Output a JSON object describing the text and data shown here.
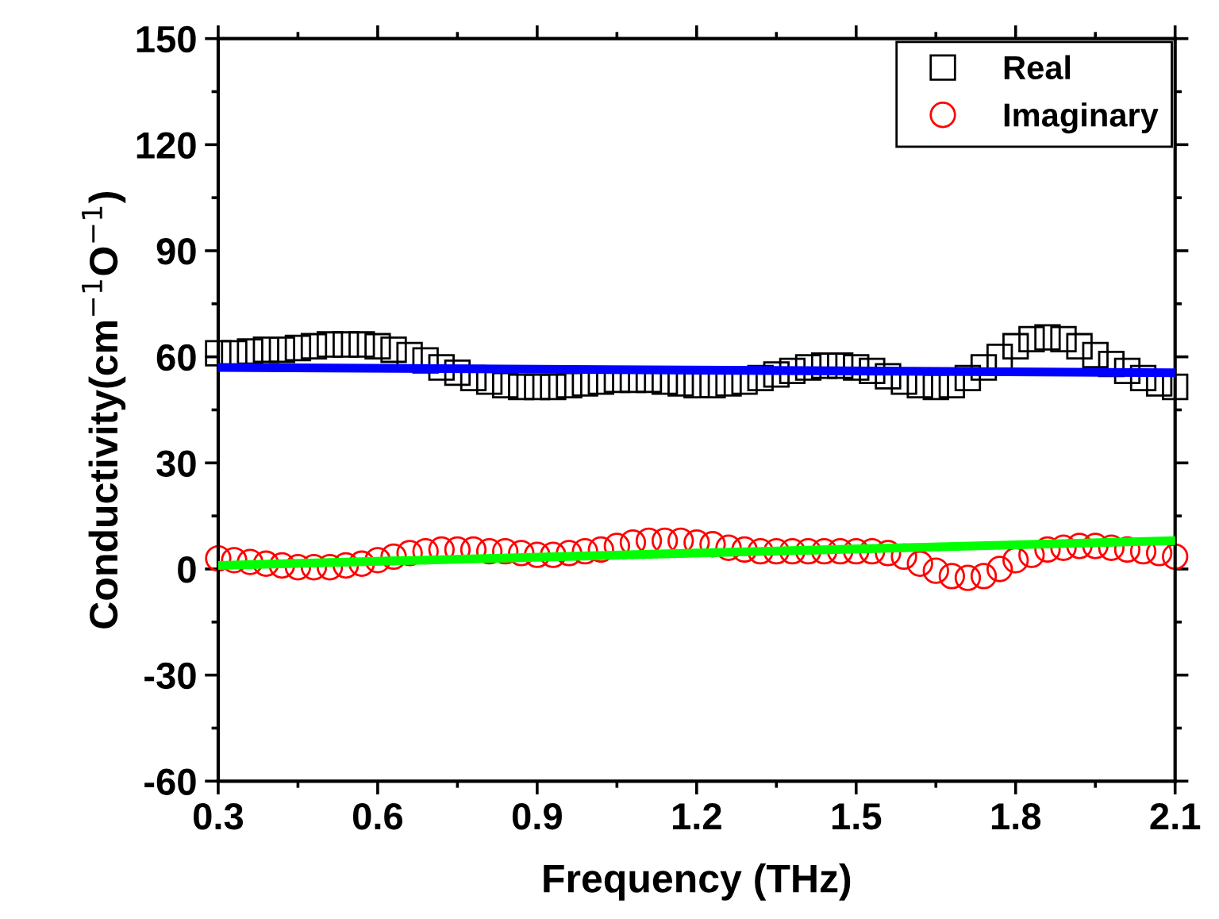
{
  "chart_data": {
    "type": "scatter",
    "xlabel": "Frequency (THz)",
    "ylabel": "Conductivity(cm$^{−1}$O$^{−1}$)",
    "xlim": [
      0.3,
      2.1
    ],
    "xticks": [
      0.3,
      0.6,
      0.9,
      1.2,
      1.5,
      1.8,
      2.1
    ],
    "ylim": [
      -60,
      150
    ],
    "yticks": [
      -60,
      -30,
      0,
      30,
      60,
      90,
      120,
      150
    ],
    "grid": false,
    "legend": "top right",
    "series": [
      {
        "name": "Real",
        "marker": "square",
        "color": "#000000",
        "x": [
          0.3,
          0.33,
          0.36,
          0.39,
          0.42,
          0.45,
          0.48,
          0.51,
          0.54,
          0.57,
          0.6,
          0.63,
          0.66,
          0.69,
          0.72,
          0.75,
          0.78,
          0.81,
          0.84,
          0.87,
          0.9,
          0.93,
          0.96,
          0.99,
          1.02,
          1.05,
          1.08,
          1.11,
          1.14,
          1.17,
          1.2,
          1.23,
          1.26,
          1.29,
          1.32,
          1.35,
          1.38,
          1.41,
          1.44,
          1.47,
          1.5,
          1.53,
          1.56,
          1.59,
          1.62,
          1.65,
          1.68,
          1.71,
          1.74,
          1.77,
          1.8,
          1.83,
          1.86,
          1.89,
          1.92,
          1.95,
          1.98,
          2.01,
          2.04,
          2.07,
          2.1
        ],
        "values": [
          61,
          61,
          61.5,
          62,
          62,
          62.5,
          63,
          63.5,
          63.5,
          63.5,
          63,
          62,
          60.5,
          59,
          57,
          55.5,
          54,
          53,
          52,
          51.5,
          51.5,
          51.5,
          52,
          52.5,
          53,
          53.5,
          53.5,
          53.5,
          53,
          52.5,
          52,
          52,
          52.5,
          53,
          54,
          55,
          56,
          57,
          57.5,
          57.5,
          57,
          56,
          54.5,
          53,
          52,
          51.5,
          52,
          54,
          57,
          60,
          63,
          65,
          65.5,
          65,
          63,
          60.5,
          58,
          56,
          54,
          52.5,
          51.5
        ]
      },
      {
        "name": "Imaginary",
        "marker": "circle",
        "color": "#ff0000",
        "x": [
          0.3,
          0.33,
          0.36,
          0.39,
          0.42,
          0.45,
          0.48,
          0.51,
          0.54,
          0.57,
          0.6,
          0.63,
          0.66,
          0.69,
          0.72,
          0.75,
          0.78,
          0.81,
          0.84,
          0.87,
          0.9,
          0.93,
          0.96,
          0.99,
          1.02,
          1.05,
          1.08,
          1.11,
          1.14,
          1.17,
          1.2,
          1.23,
          1.26,
          1.29,
          1.32,
          1.35,
          1.38,
          1.41,
          1.44,
          1.47,
          1.5,
          1.53,
          1.56,
          1.59,
          1.62,
          1.65,
          1.68,
          1.71,
          1.74,
          1.77,
          1.8,
          1.83,
          1.86,
          1.89,
          1.92,
          1.95,
          1.98,
          2.01,
          2.04,
          2.07,
          2.1
        ],
        "values": [
          3,
          2.5,
          2,
          1.5,
          1,
          0.5,
          0.5,
          0.5,
          1,
          1.5,
          2.5,
          3.5,
          4.5,
          5,
          5.5,
          5.5,
          5.5,
          5,
          5,
          4.5,
          4,
          4,
          4.5,
          5,
          5.5,
          6.5,
          7.5,
          8,
          8,
          8,
          7.5,
          7,
          6,
          5.5,
          5,
          5,
          5,
          5,
          5,
          5,
          5,
          5,
          4.5,
          3.5,
          1.5,
          -0.5,
          -2,
          -2.5,
          -2,
          0,
          2.5,
          4,
          5.5,
          6,
          6.5,
          6.5,
          6,
          5.5,
          5,
          4.5,
          3.5
        ]
      },
      {
        "type": "line",
        "marker": "none",
        "color": "#0000ff",
        "x": [
          0.3,
          2.1
        ],
        "values": [
          57,
          55.5
        ]
      },
      {
        "type": "line",
        "marker": "none",
        "color": "#00ff00",
        "x": [
          0.3,
          2.1
        ],
        "values": [
          1,
          8
        ]
      }
    ]
  }
}
